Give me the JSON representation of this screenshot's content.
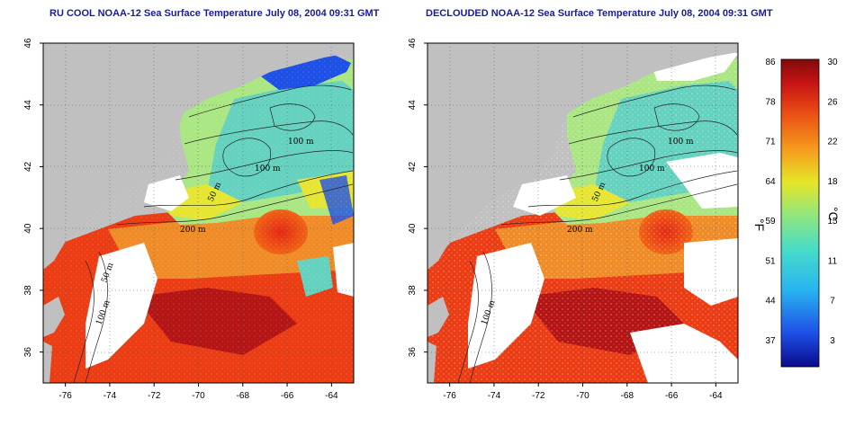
{
  "panels": [
    {
      "title": "RU COOL NOAA-12 Sea Surface Temperature July 08, 2004 09:31 GMT",
      "contour_labels": [
        "100 m",
        "100 m",
        "50 m",
        "200 m",
        "50 m",
        "100 m"
      ]
    },
    {
      "title": "DECLOUDED NOAA-12 Sea Surface Temperature July 08, 2004 09:31 GMT",
      "contour_labels": [
        "100 m",
        "100 m",
        "50 m",
        "200 m",
        "100 m"
      ]
    }
  ],
  "axes": {
    "x_ticks": [
      "-76",
      "-74",
      "-72",
      "-70",
      "-68",
      "-66",
      "-64"
    ],
    "y_ticks": [
      "36",
      "38",
      "40",
      "42",
      "44",
      "46"
    ],
    "x_range": [
      -77,
      -63
    ],
    "y_range": [
      35,
      46
    ]
  },
  "colorbar": {
    "fahrenheit_ticks": [
      "86",
      "78",
      "71",
      "64",
      "59",
      "51",
      "44",
      "37"
    ],
    "celsius_ticks": [
      "30",
      "26",
      "22",
      "18",
      "15",
      "11",
      "7",
      "3"
    ],
    "fahrenheit_unit": "°F",
    "celsius_unit": "°C",
    "colors": [
      "#0a0a8c",
      "#1e50e6",
      "#28b4f0",
      "#46dcc8",
      "#96e678",
      "#e6e628",
      "#f5a01e",
      "#eb5014",
      "#c81414",
      "#820a0a"
    ]
  },
  "map_colors": {
    "land": "#c0c0c0",
    "cloud": "#ffffff",
    "cold": "#1e50e6",
    "cool": "#64d2be",
    "mild": "#aae682",
    "warm_yellow": "#e6e632",
    "orange": "#f08c28",
    "hot": "#eb3c14",
    "very_hot": "#b41414"
  }
}
